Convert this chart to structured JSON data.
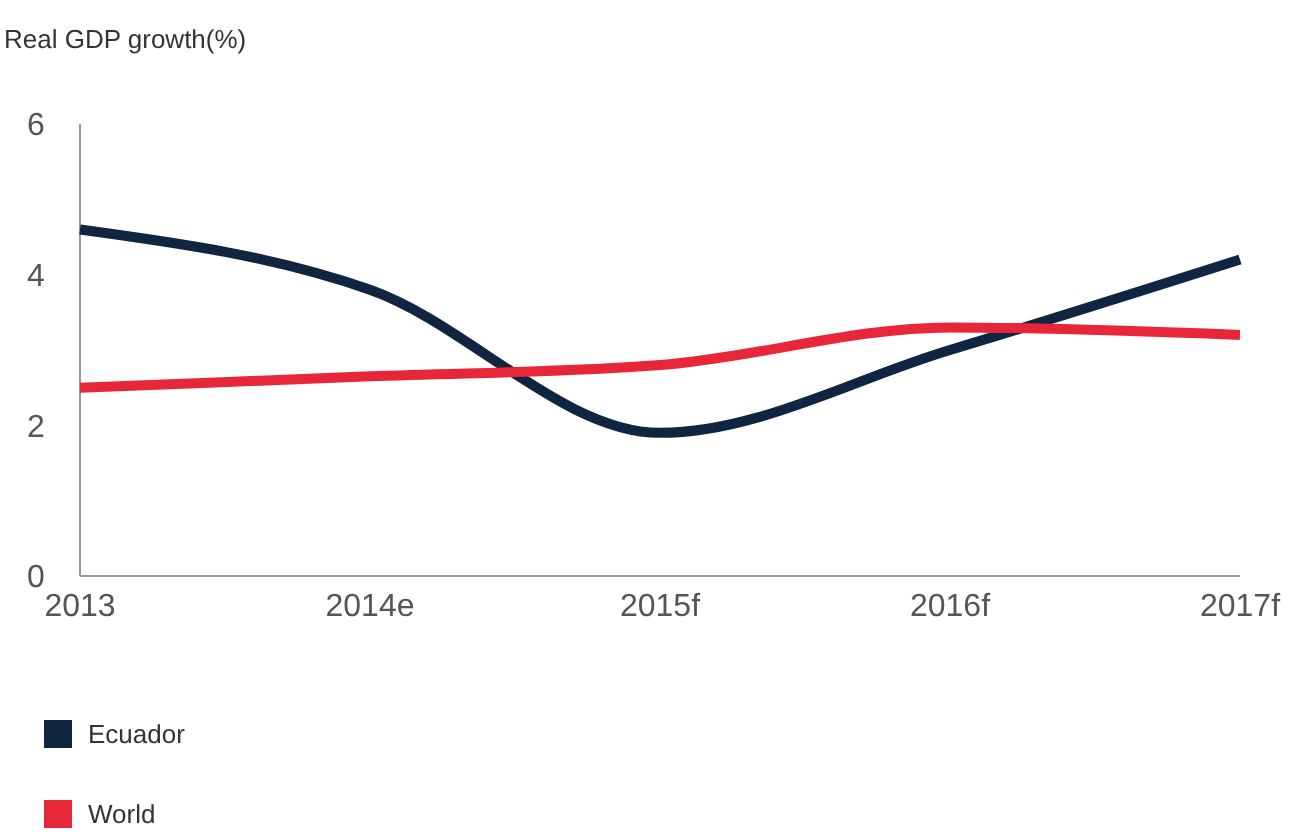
{
  "chart_data": {
    "type": "line",
    "title": "Real GDP growth(%)",
    "categories": [
      "2013",
      "2014e",
      "2015f",
      "2016f",
      "2017f"
    ],
    "series": [
      {
        "name": "Ecuador",
        "color": "#0f2540",
        "values": [
          4.6,
          3.8,
          1.9,
          3.0,
          4.2
        ]
      },
      {
        "name": "World",
        "color": "#e8263a",
        "values": [
          2.5,
          2.65,
          2.8,
          3.3,
          3.2
        ]
      }
    ],
    "ylim": [
      0,
      6
    ],
    "yticks": [
      0,
      2,
      4,
      6
    ],
    "grid": false,
    "legend": "bottom",
    "marker": "none",
    "line_style": "solid"
  }
}
